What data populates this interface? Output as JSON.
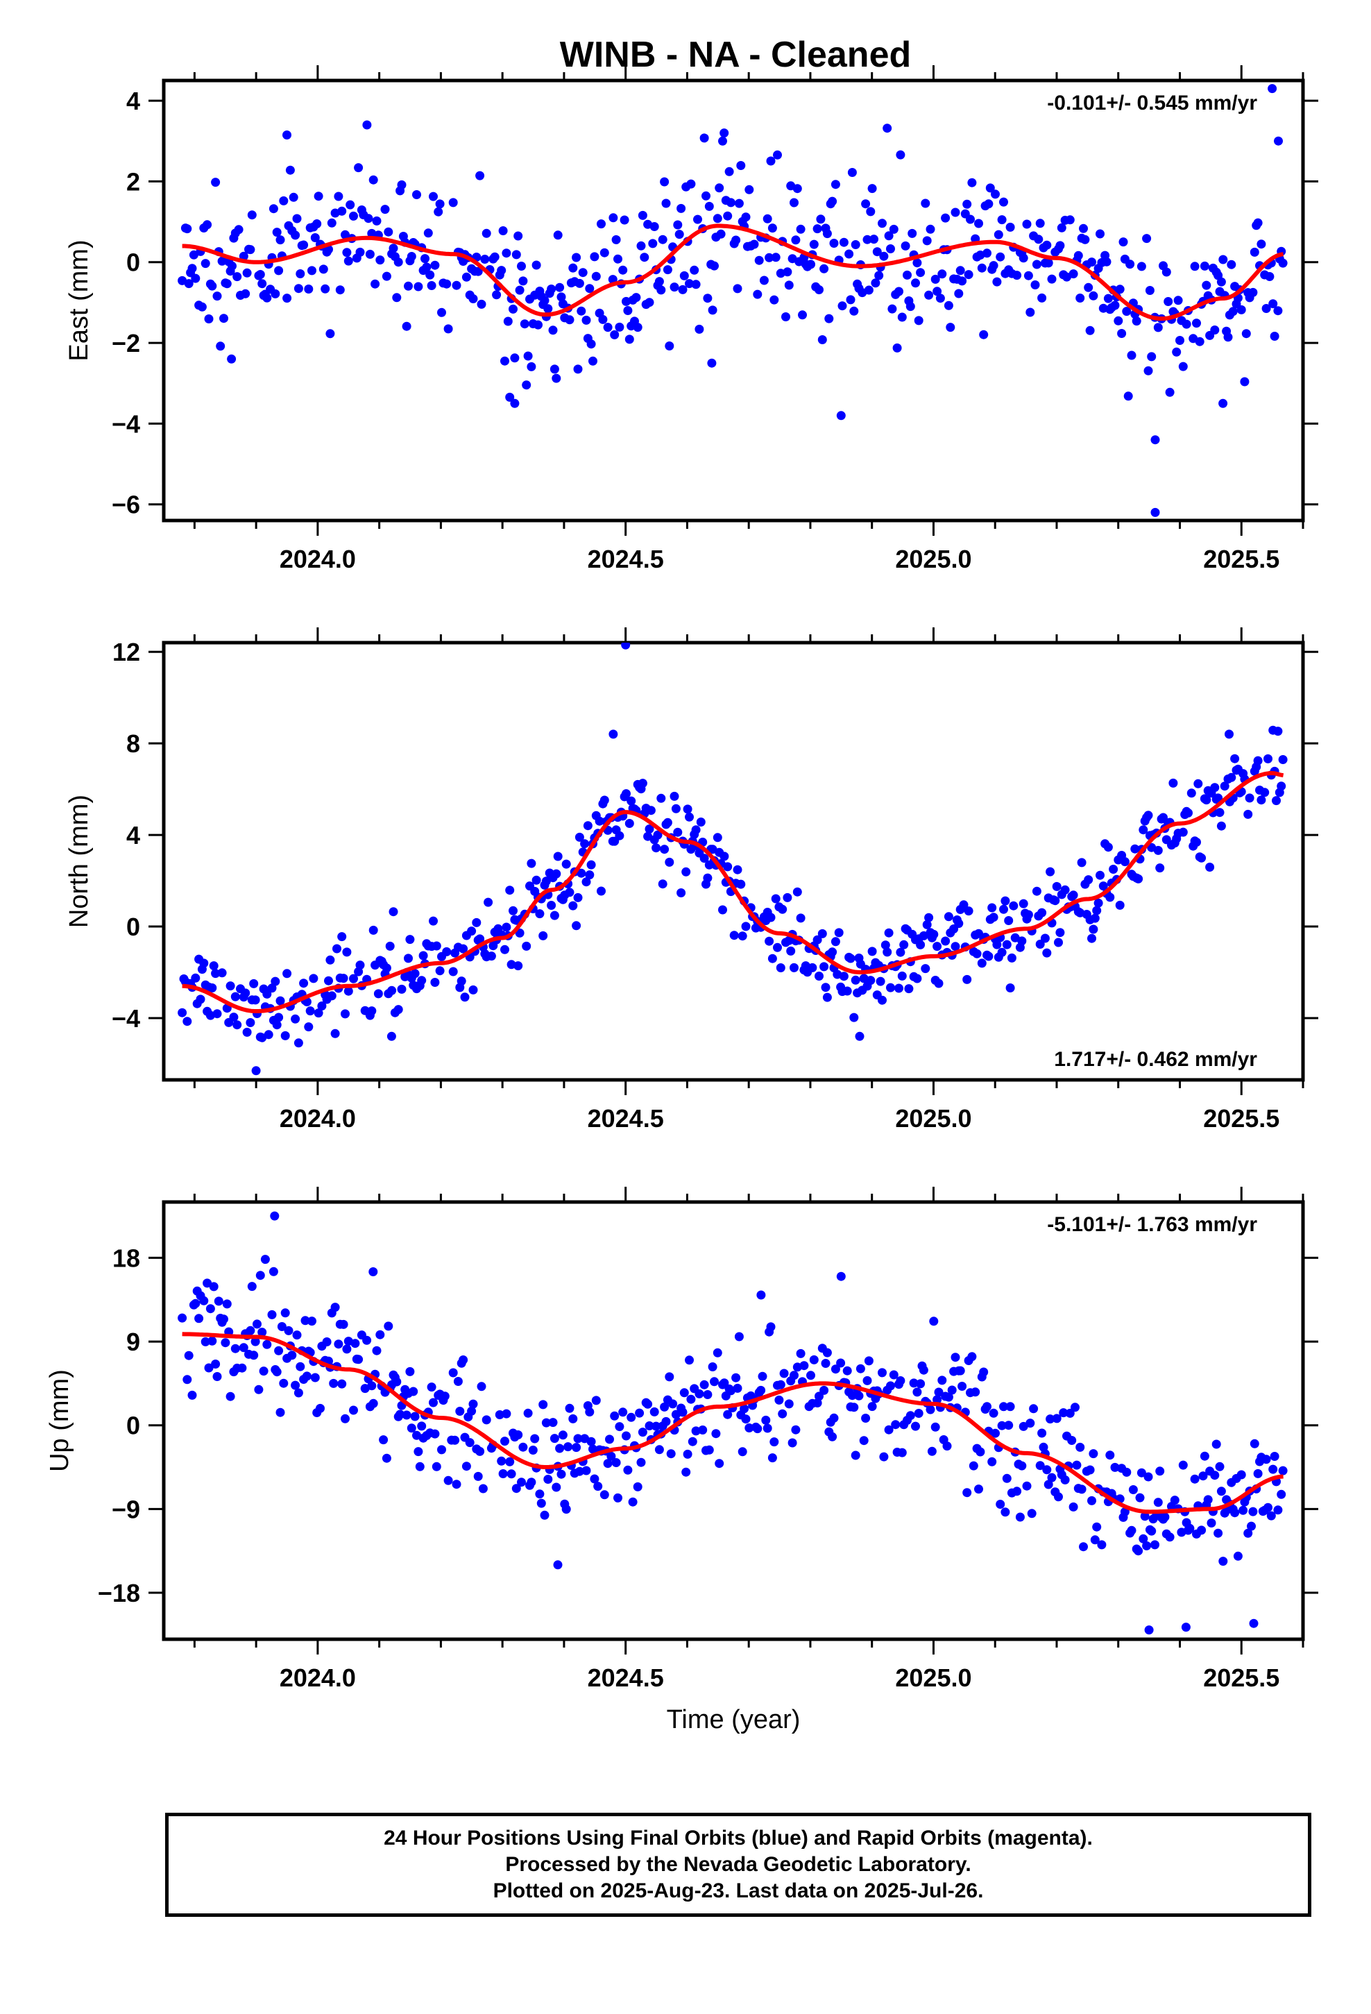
{
  "title": "WINB  - NA - Cleaned",
  "footer": {
    "line1": "24 Hour Positions Using Final Orbits (blue) and Rapid Orbits (magenta).",
    "line2": "Processed by the Nevada Geodetic Laboratory.",
    "line3": "Plotted on 2025-Aug-23. Last data on 2025-Jul-26."
  },
  "colors": {
    "observations": "#0000ff",
    "trend": "#ff0000",
    "frame": "#000000"
  },
  "chart_data": [
    {
      "type": "scatter",
      "name": "east",
      "ylabel": "East (mm)",
      "xlabel": "",
      "rate": "-0.101+/- 0.545 mm/yr",
      "rate_position": "top-right",
      "xlim": [
        2023.75,
        2025.6
      ],
      "ylim": [
        -6.4,
        4.5
      ],
      "xticks": [
        2024.0,
        2024.5,
        2025.0,
        2025.5
      ],
      "xtick_labels": [
        "2024.0",
        "2024.5",
        "2025.0",
        "2025.5"
      ],
      "yticks": [
        4,
        2,
        0,
        -2,
        -4,
        -6
      ],
      "ytick_labels": [
        "4",
        "2",
        "0",
        "−2",
        "−4",
        "−6"
      ],
      "noise": 0.9,
      "seed": 11,
      "curve": [
        [
          2023.78,
          0.4
        ],
        [
          2023.9,
          0.0
        ],
        [
          2024.08,
          0.6
        ],
        [
          2024.22,
          0.2
        ],
        [
          2024.37,
          -1.3
        ],
        [
          2024.5,
          -0.5
        ],
        [
          2024.65,
          0.9
        ],
        [
          2024.88,
          -0.1
        ],
        [
          2025.1,
          0.5
        ],
        [
          2025.2,
          0.1
        ],
        [
          2025.37,
          -1.4
        ],
        [
          2025.47,
          -0.9
        ],
        [
          2025.57,
          0.2
        ]
      ],
      "outliers": [
        [
          2024.08,
          3.4
        ],
        [
          2023.95,
          3.15
        ],
        [
          2024.66,
          3.2
        ],
        [
          2024.48,
          1.1
        ],
        [
          2025.36,
          -4.4
        ],
        [
          2025.36,
          -6.2
        ],
        [
          2024.85,
          -3.8
        ],
        [
          2025.47,
          -3.5
        ],
        [
          2024.32,
          -3.5
        ],
        [
          2025.55,
          4.3
        ],
        [
          2025.56,
          3.0
        ],
        [
          2024.64,
          -2.5
        ],
        [
          2023.86,
          -2.4
        ]
      ]
    },
    {
      "type": "scatter",
      "name": "north",
      "ylabel": "North (mm)",
      "xlabel": "",
      "rate": "1.717+/- 0.462 mm/yr",
      "rate_position": "bottom-right",
      "xlim": [
        2023.75,
        2025.6
      ],
      "ylim": [
        -6.7,
        12.4
      ],
      "xticks": [
        2024.0,
        2024.5,
        2025.0,
        2025.5
      ],
      "xtick_labels": [
        "2024.0",
        "2024.5",
        "2025.0",
        "2025.5"
      ],
      "yticks": [
        12,
        8,
        4,
        0,
        -4
      ],
      "ytick_labels": [
        "12",
        "8",
        "4",
        "0",
        "−4"
      ],
      "noise": 0.9,
      "seed": 23,
      "curve": [
        [
          2023.78,
          -2.6
        ],
        [
          2023.9,
          -3.7
        ],
        [
          2024.05,
          -2.6
        ],
        [
          2024.2,
          -1.6
        ],
        [
          2024.3,
          -0.5
        ],
        [
          2024.38,
          1.6
        ],
        [
          2024.5,
          5.0
        ],
        [
          2024.6,
          3.7
        ],
        [
          2024.75,
          -0.3
        ],
        [
          2024.88,
          -2.0
        ],
        [
          2025.0,
          -1.3
        ],
        [
          2025.15,
          -0.1
        ],
        [
          2025.25,
          1.2
        ],
        [
          2025.4,
          4.5
        ],
        [
          2025.55,
          6.7
        ],
        [
          2025.57,
          6.6
        ]
      ],
      "outliers": [
        [
          2024.5,
          12.3
        ],
        [
          2025.48,
          8.4
        ],
        [
          2024.48,
          8.4
        ],
        [
          2024.12,
          -4.8
        ],
        [
          2024.88,
          -4.8
        ],
        [
          2023.9,
          -6.3
        ]
      ]
    },
    {
      "type": "scatter",
      "name": "up",
      "ylabel": "Up (mm)",
      "xlabel": "Time (year)",
      "rate": "-5.101+/- 1.763 mm/yr",
      "rate_position": "top-right",
      "xlim": [
        2023.75,
        2025.6
      ],
      "ylim": [
        -23,
        24
      ],
      "xticks": [
        2024.0,
        2024.5,
        2025.0,
        2025.5
      ],
      "xtick_labels": [
        "2024.0",
        "2024.5",
        "2025.0",
        "2025.5"
      ],
      "yticks": [
        18,
        9,
        0,
        -9,
        -18
      ],
      "ytick_labels": [
        "18",
        "9",
        "0",
        "−9",
        "−18"
      ],
      "noise": 3.2,
      "seed": 37,
      "curve": [
        [
          2023.78,
          9.8
        ],
        [
          2023.9,
          9.5
        ],
        [
          2024.05,
          6.0
        ],
        [
          2024.2,
          0.8
        ],
        [
          2024.37,
          -4.5
        ],
        [
          2024.5,
          -2.5
        ],
        [
          2024.65,
          2.0
        ],
        [
          2024.82,
          4.5
        ],
        [
          2025.0,
          2.3
        ],
        [
          2025.15,
          -3.0
        ],
        [
          2025.35,
          -9.3
        ],
        [
          2025.45,
          -9.0
        ],
        [
          2025.57,
          -5.5
        ]
      ],
      "outliers": [
        [
          2023.93,
          22.5
        ],
        [
          2024.85,
          16.0
        ],
        [
          2025.35,
          -22.0
        ],
        [
          2025.41,
          -21.7
        ],
        [
          2025.52,
          -21.3
        ],
        [
          2024.39,
          -15.0
        ],
        [
          2024.09,
          16.5
        ],
        [
          2024.72,
          14.0
        ]
      ]
    }
  ]
}
